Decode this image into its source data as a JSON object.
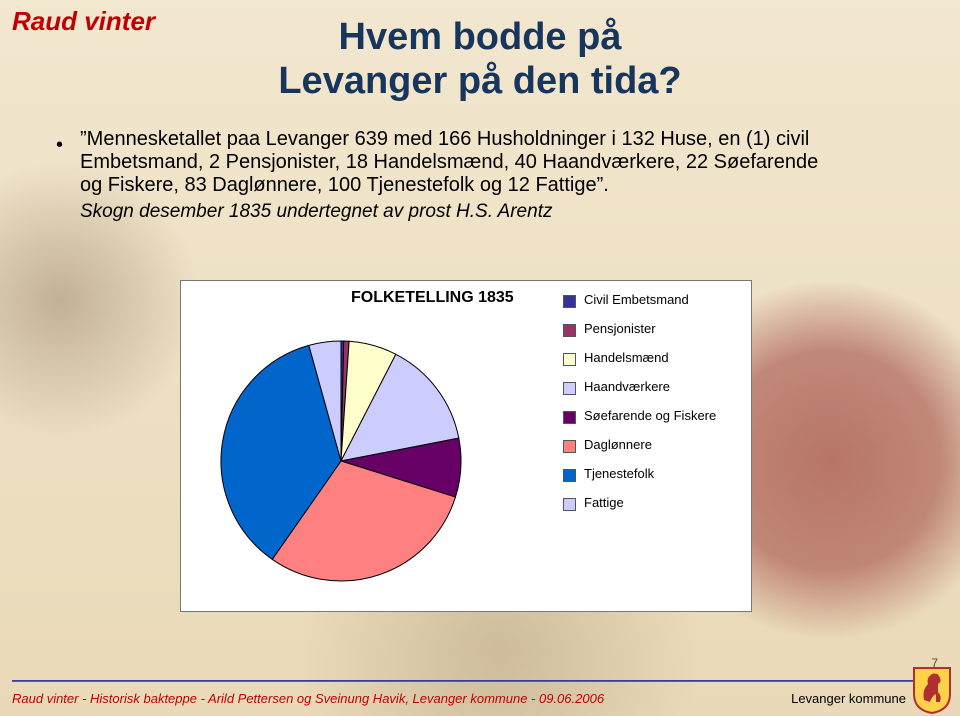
{
  "brand": {
    "text": "Raud vinter",
    "color": "#c00000",
    "fontsize": 26
  },
  "title": {
    "line1": "Hvem bodde på",
    "line2": "Levanger på den tida?",
    "color": "#17365d",
    "fontsize": 38
  },
  "body": {
    "fontsize": 20,
    "quote": "”Mennesketallet paa Levanger 639 med 166 Husholdninger i 132 Huse, en (1) civil Embetsmand, 2 Pensjonister, 18 Handelsmænd, 40 Haandværkere, 22 Søefarende og Fiskere, 83 Daglønnere, 100 Tjenestefolk og 12 Fattige”.",
    "source": "Skogn desember 1835 undertegnet av prost H.S. Arentz",
    "source_fontsize": 19
  },
  "chart": {
    "type": "pie",
    "title": "FOLKETELLING 1835",
    "title_fontsize": 16,
    "background_color": "#ffffff",
    "border_color": "#777777",
    "label_fontsize": 13,
    "slices": [
      {
        "label": "Civil Embetsmand",
        "value": 1,
        "color": "#333399"
      },
      {
        "label": "Pensjonister",
        "value": 2,
        "color": "#993366"
      },
      {
        "label": "Handelsmænd",
        "value": 18,
        "color": "#ffffcc"
      },
      {
        "label": "Haandværkere",
        "value": 40,
        "color": "#ccccff"
      },
      {
        "label": "Søefarende og Fiskere",
        "value": 22,
        "color": "#660066"
      },
      {
        "label": "Daglønnere",
        "value": 83,
        "color": "#ff8080"
      },
      {
        "label": "Tjenestefolk",
        "value": 100,
        "color": "#0066cc"
      },
      {
        "label": "Fattige",
        "value": 12,
        "color": "#ccccff"
      }
    ],
    "slice_border_color": "#000000",
    "slice_border_width": 1
  },
  "footer": {
    "left": "Raud vinter - Historisk bakteppe - Arild Pettersen og Sveinung Havik, Levanger kommune - 09.06.2006",
    "right": "Levanger kommune",
    "left_color": "#c00000",
    "fontsize": 13
  },
  "slide_number": "7",
  "crest": {
    "shield_fill": "#ffd24a",
    "shield_stroke": "#b03030",
    "horse_fill": "#b03030"
  }
}
